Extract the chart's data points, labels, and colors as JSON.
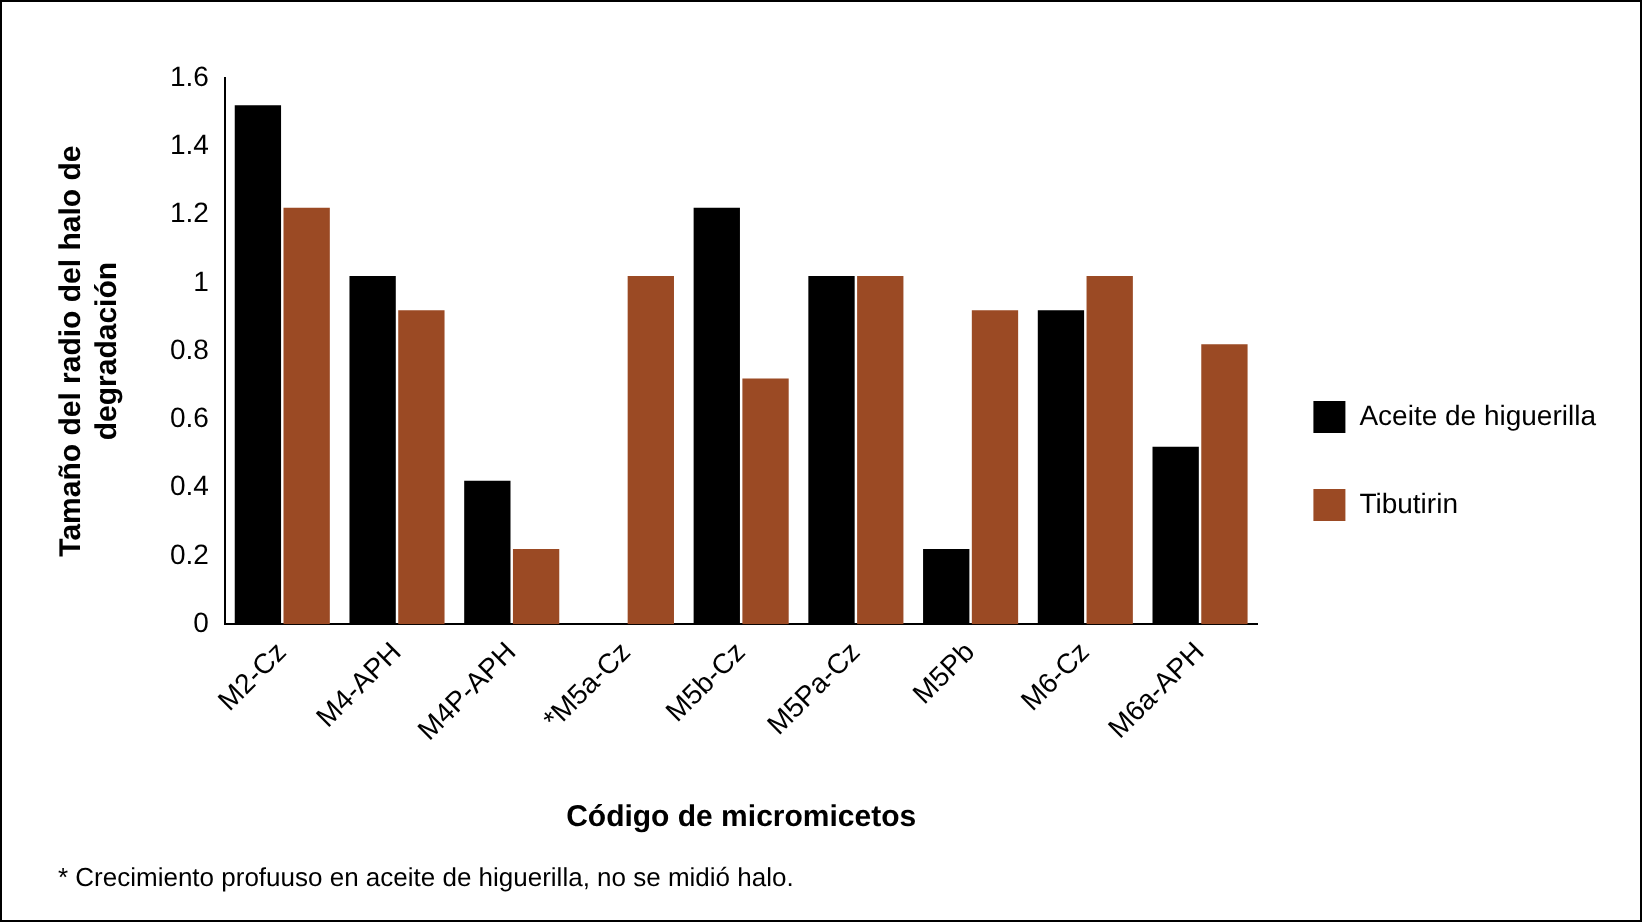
{
  "chart_data": {
    "type": "bar",
    "xlabel": "Código de micromicetos",
    "ylabel": "Tamaño del radio del halo de degradación",
    "categories": [
      "M2-Cz",
      "M4-APH",
      "M4P-APH",
      "*M5a-Cz",
      "M5b-Cz",
      "M5Pa-Cz",
      "M5Pb",
      "M6-Cz",
      "M6a-APH"
    ],
    "series": [
      {
        "name": "Aceite de higuerilla",
        "color": "#000000",
        "values": [
          1.52,
          1.02,
          0.42,
          null,
          1.22,
          1.02,
          0.22,
          0.92,
          0.52
        ]
      },
      {
        "name": "Tibutirin",
        "color": "#9b4a24",
        "values": [
          1.22,
          0.92,
          0.22,
          1.02,
          0.72,
          1.02,
          0.92,
          1.02,
          0.82
        ]
      }
    ],
    "ylim": [
      0,
      1.6
    ],
    "yticks": [
      0,
      0.2,
      0.4,
      0.6,
      0.8,
      1,
      1.2,
      1.4,
      1.6
    ],
    "grid": false,
    "legend": "right",
    "annotations": [
      "* Crecimiento profuuso en aceite de higuerilla, no se midió halo."
    ]
  }
}
